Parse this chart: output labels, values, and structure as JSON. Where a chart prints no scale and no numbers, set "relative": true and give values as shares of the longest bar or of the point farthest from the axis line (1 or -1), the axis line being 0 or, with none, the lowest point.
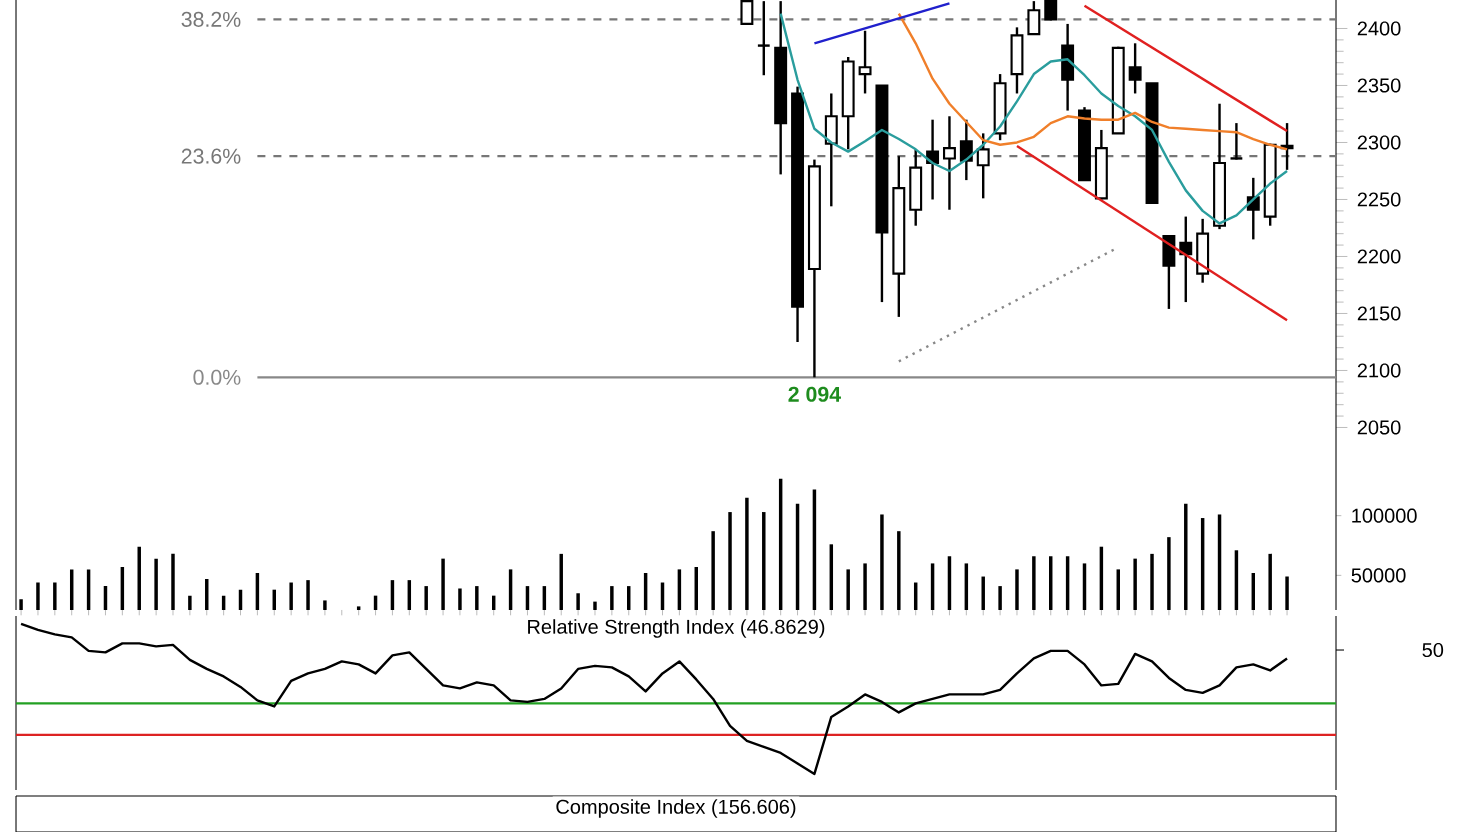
{
  "chart_data": [
    {
      "type": "candlestick",
      "tick_labels": "y",
      "categories": [
        null,
        null,
        null,
        null,
        null,
        null,
        null,
        null,
        null,
        null,
        null,
        null,
        null,
        null,
        null,
        null,
        null,
        null,
        null,
        null,
        null,
        null,
        null,
        null,
        null,
        null,
        null,
        null,
        null,
        null,
        null,
        null,
        null,
        null,
        null,
        null,
        null,
        null,
        null,
        null,
        null,
        null,
        null,
        null,
        null,
        null,
        null,
        null,
        null,
        null,
        null,
        null,
        null,
        null,
        null,
        null,
        null,
        null,
        null,
        null,
        null,
        null,
        null,
        null,
        null,
        null,
        null,
        null,
        null,
        null,
        null,
        null,
        null,
        null,
        null,
        null
      ],
      "ohlc": [
        null,
        null,
        null,
        null,
        null,
        null,
        null,
        null,
        null,
        null,
        null,
        null,
        null,
        null,
        null,
        null,
        null,
        null,
        null,
        null,
        null,
        null,
        null,
        null,
        null,
        null,
        null,
        null,
        null,
        null,
        null,
        null,
        null,
        null,
        null,
        null,
        null,
        null,
        null,
        null,
        null,
        null,
        null,
        [
          2404,
          2424,
          2404,
          2424
        ],
        [
          2385,
          2424,
          2359,
          2385
        ],
        [
          2383,
          2424,
          2272,
          2317
        ],
        [
          2343,
          2349,
          2125,
          2156
        ],
        [
          2189,
          2285,
          2094,
          2279
        ],
        [
          2299,
          2343,
          2244,
          2323
        ],
        [
          2323,
          2375,
          2294,
          2371
        ],
        [
          2360,
          2398,
          2343,
          2366
        ],
        [
          2350,
          2350,
          2160,
          2221
        ],
        [
          2185,
          2288,
          2147,
          2260
        ],
        [
          2241,
          2294,
          2227,
          2278
        ],
        [
          2292,
          2320,
          2250,
          2282
        ],
        [
          2286,
          2323,
          2241,
          2295
        ],
        [
          2301,
          2320,
          2267,
          2284
        ],
        [
          2280,
          2308,
          2251,
          2294
        ],
        [
          2308,
          2360,
          2302,
          2352
        ],
        [
          2360,
          2401,
          2343,
          2394
        ],
        [
          2395,
          2424,
          2395,
          2416
        ],
        [
          2424,
          2424,
          2407,
          2408
        ],
        [
          2385,
          2404,
          2328,
          2355
        ],
        [
          2328,
          2331,
          2267,
          2267
        ],
        [
          2251,
          2311,
          2250,
          2295
        ],
        [
          2308,
          2384,
          2308,
          2383
        ],
        [
          2366,
          2387,
          2343,
          2355
        ],
        [
          2352,
          2352,
          2247,
          2247
        ],
        [
          2218,
          2218,
          2154,
          2192
        ],
        [
          2212,
          2235,
          2160,
          2202
        ],
        [
          2185,
          2233,
          2177,
          2220
        ],
        [
          2227,
          2334,
          2224,
          2282
        ],
        [
          2286,
          2317,
          2285,
          2286
        ],
        [
          2252,
          2269,
          2215,
          2241
        ],
        [
          2235,
          2299,
          2227,
          2298
        ],
        [
          2295,
          2317,
          2276,
          2297
        ]
      ],
      "ylim": [
        2025,
        2425
      ],
      "yticks": [
        2050,
        2100,
        2150,
        2200,
        2250,
        2300,
        2350,
        2400
      ],
      "ref_lines": [
        {
          "axis": "y",
          "value": 2408,
          "color": "#777777",
          "line_style": "dashed"
        },
        {
          "axis": "y",
          "value": 2288,
          "color": "#777777",
          "line_style": "dashed"
        },
        {
          "axis": "y",
          "value": 2094,
          "color": "#888888",
          "line_style": "solid"
        }
      ],
      "annotations": [
        "38.2%",
        "23.6%",
        "0.0%",
        {
          "text": "2 094",
          "y": 2094
        }
      ],
      "series": [
        {
          "type": "line",
          "color": "#2a9d9d",
          "line_style": "solid",
          "values": [
            null,
            null,
            null,
            null,
            null,
            null,
            null,
            null,
            null,
            null,
            null,
            null,
            null,
            null,
            null,
            null,
            null,
            null,
            null,
            null,
            null,
            null,
            null,
            null,
            null,
            null,
            null,
            null,
            null,
            null,
            null,
            null,
            null,
            null,
            null,
            null,
            null,
            null,
            null,
            null,
            null,
            null,
            null,
            null,
            null,
            2413,
            2355,
            2312,
            2300,
            2292,
            2301,
            2311,
            2303,
            2294,
            2282,
            2275,
            2285,
            2298,
            2314,
            2336,
            2360,
            2371,
            2373,
            2359,
            2343,
            2332,
            2323,
            2311,
            2283,
            2258,
            2240,
            2229,
            2236,
            2250,
            2264,
            2275
          ]
        },
        {
          "type": "line",
          "color": "#f07f2a",
          "line_style": "solid",
          "values": [
            null,
            null,
            null,
            null,
            null,
            null,
            null,
            null,
            null,
            null,
            null,
            null,
            null,
            null,
            null,
            null,
            null,
            null,
            null,
            null,
            null,
            null,
            null,
            null,
            null,
            null,
            null,
            null,
            null,
            null,
            null,
            null,
            null,
            null,
            null,
            null,
            null,
            null,
            null,
            null,
            null,
            null,
            null,
            null,
            null,
            null,
            null,
            null,
            null,
            null,
            null,
            null,
            2413,
            2387,
            2356,
            2334,
            2318,
            2302,
            2298,
            2300,
            2305,
            2317,
            2323,
            2321,
            2320,
            2320,
            2326,
            2318,
            2313,
            2312,
            2311,
            2310,
            2309,
            2303,
            2298,
            2294
          ]
        },
        {
          "type": "line",
          "color": "#2020cc",
          "line_style": "solid",
          "values": [
            null,
            null,
            null,
            null,
            null,
            null,
            null,
            null,
            null,
            null,
            null,
            null,
            null,
            null,
            null,
            null,
            null,
            null,
            null,
            null,
            null,
            null,
            null,
            null,
            null,
            null,
            null,
            null,
            null,
            null,
            null,
            null,
            null,
            null,
            null,
            null,
            null,
            null,
            null,
            null,
            null,
            null,
            null,
            null,
            null,
            null,
            null,
            2387,
            null,
            null,
            null,
            null,
            null,
            null,
            null,
            2422,
            null,
            null,
            null,
            null,
            null,
            null,
            null,
            null,
            null,
            null,
            null,
            null,
            null,
            null,
            null,
            null,
            null,
            null,
            null,
            null
          ]
        },
        {
          "type": "line",
          "color": "#e02020",
          "line_style": "solid",
          "values": [
            null,
            null,
            null,
            null,
            null,
            null,
            null,
            null,
            null,
            null,
            null,
            null,
            null,
            null,
            null,
            null,
            null,
            null,
            null,
            null,
            null,
            null,
            null,
            null,
            null,
            null,
            null,
            null,
            null,
            null,
            null,
            null,
            null,
            null,
            null,
            null,
            null,
            null,
            null,
            null,
            null,
            null,
            null,
            null,
            null,
            null,
            null,
            null,
            null,
            null,
            null,
            null,
            null,
            null,
            null,
            null,
            null,
            null,
            null,
            null,
            null,
            null,
            null,
            2420,
            null,
            null,
            null,
            null,
            null,
            null,
            null,
            null,
            null,
            null,
            null,
            2310
          ]
        },
        {
          "type": "line",
          "color": "#e02020",
          "line_style": "solid",
          "values": [
            null,
            null,
            null,
            null,
            null,
            null,
            null,
            null,
            null,
            null,
            null,
            null,
            null,
            null,
            null,
            null,
            null,
            null,
            null,
            null,
            null,
            null,
            null,
            null,
            null,
            null,
            null,
            null,
            null,
            null,
            null,
            null,
            null,
            null,
            null,
            null,
            null,
            null,
            null,
            null,
            null,
            null,
            null,
            null,
            null,
            null,
            null,
            null,
            null,
            null,
            null,
            null,
            null,
            null,
            null,
            null,
            null,
            null,
            null,
            2297,
            null,
            null,
            null,
            null,
            null,
            null,
            null,
            null,
            null,
            null,
            null,
            null,
            null,
            null,
            null,
            2144
          ]
        },
        {
          "type": "line",
          "color": "#888888",
          "line_style": "dotted",
          "values": [
            null,
            null,
            null,
            null,
            null,
            null,
            null,
            null,
            null,
            null,
            null,
            null,
            null,
            null,
            null,
            null,
            null,
            null,
            null,
            null,
            null,
            null,
            null,
            null,
            null,
            null,
            null,
            null,
            null,
            null,
            null,
            null,
            null,
            null,
            null,
            null,
            null,
            null,
            null,
            null,
            null,
            null,
            null,
            null,
            null,
            null,
            null,
            null,
            null,
            null,
            null,
            null,
            2108,
            null,
            null,
            null,
            null,
            null,
            null,
            null,
            null,
            null,
            null,
            null,
            null,
            2208,
            null,
            null,
            null,
            null,
            null,
            null,
            null,
            null,
            null,
            null
          ]
        }
      ]
    },
    {
      "type": "bar",
      "tick_labels": "y",
      "color": "#000000",
      "categories": [
        null,
        null,
        null,
        null,
        null,
        null,
        null,
        null,
        null,
        null,
        null,
        null,
        null,
        null,
        null,
        null,
        null,
        null,
        null,
        null,
        null,
        null,
        null,
        null,
        null,
        null,
        null,
        null,
        null,
        null,
        null,
        null,
        null,
        null,
        null,
        null,
        null,
        null,
        null,
        null,
        null,
        null,
        null,
        null,
        null,
        null,
        null,
        null,
        null,
        null,
        null,
        null,
        null,
        null,
        null,
        null,
        null,
        null,
        null,
        null,
        null,
        null,
        null,
        null,
        null,
        null,
        null,
        null,
        null,
        null,
        null,
        null,
        null,
        null,
        null,
        null
      ],
      "values": [
        30000,
        44000,
        44000,
        55000,
        55000,
        41000,
        57000,
        74000,
        64000,
        68000,
        33000,
        47000,
        33000,
        38000,
        52000,
        38000,
        44000,
        46000,
        29000,
        null,
        24000,
        33000,
        46000,
        46000,
        41000,
        64000,
        39000,
        41000,
        33000,
        55000,
        41000,
        41000,
        68000,
        35000,
        28000,
        41000,
        41000,
        52000,
        44000,
        55000,
        57000,
        87000,
        103000,
        115000,
        103000,
        131000,
        110000,
        122000,
        76000,
        55000,
        60000,
        101000,
        87000,
        44000,
        60000,
        66000,
        60000,
        49000,
        41000,
        55000,
        66000,
        66000,
        66000,
        60000,
        74000,
        55000,
        64000,
        68000,
        82000,
        110000,
        98000,
        101000,
        71000,
        52000,
        68000,
        49000
      ],
      "ylim": [
        21000,
        150000
      ],
      "yticks": [
        50000,
        100000
      ]
    },
    {
      "type": "line",
      "relative": true,
      "title": "Relative Strength Index (46.8629)",
      "categories": [
        null,
        null,
        null,
        null,
        null,
        null,
        null,
        null,
        null,
        null,
        null,
        null,
        null,
        null,
        null,
        null,
        null,
        null,
        null,
        null,
        null,
        null,
        null,
        null,
        null,
        null,
        null,
        null,
        null,
        null,
        null,
        null,
        null,
        null,
        null,
        null,
        null,
        null,
        null,
        null,
        null,
        null,
        null,
        null,
        null,
        null,
        null,
        null,
        null,
        null,
        null,
        null,
        null,
        null,
        null,
        null,
        null,
        null,
        null,
        null,
        null,
        null,
        null,
        null,
        null,
        null,
        null,
        null,
        null,
        null,
        null,
        null,
        null,
        null,
        null,
        null
      ],
      "annotations": [
        "50"
      ],
      "ref_lines": [
        {
          "axis": "y",
          "value": 0.47,
          "color": "#22a022"
        },
        {
          "axis": "y",
          "value": 0.26,
          "color": "#dd2222"
        }
      ],
      "series": [
        {
          "color": "#000000",
          "line_style": "solid",
          "values": [
            1.0,
            0.96,
            0.93,
            0.91,
            0.82,
            0.81,
            0.87,
            0.87,
            0.85,
            0.86,
            0.76,
            0.7,
            0.65,
            0.58,
            0.49,
            0.45,
            0.62,
            0.67,
            0.7,
            0.75,
            0.73,
            0.67,
            0.79,
            0.81,
            0.7,
            0.59,
            0.57,
            0.61,
            0.59,
            0.49,
            0.48,
            0.5,
            0.57,
            0.7,
            0.72,
            0.71,
            0.65,
            0.55,
            0.67,
            0.75,
            0.63,
            0.5,
            0.32,
            0.22,
            0.18,
            0.14,
            0.07,
            0,
            0.38,
            0.45,
            0.53,
            0.48,
            0.41,
            0.47,
            0.5,
            0.53,
            0.53,
            0.53,
            0.56,
            0.67,
            0.77,
            0.82,
            0.82,
            0.73,
            0.59,
            0.6,
            0.8,
            0.75,
            0.64,
            0.56,
            0.54,
            0.59,
            0.71,
            0.73,
            0.69,
            0.77
          ]
        }
      ]
    },
    {
      "type": "other",
      "title": "Composite Index (156.606)"
    }
  ]
}
